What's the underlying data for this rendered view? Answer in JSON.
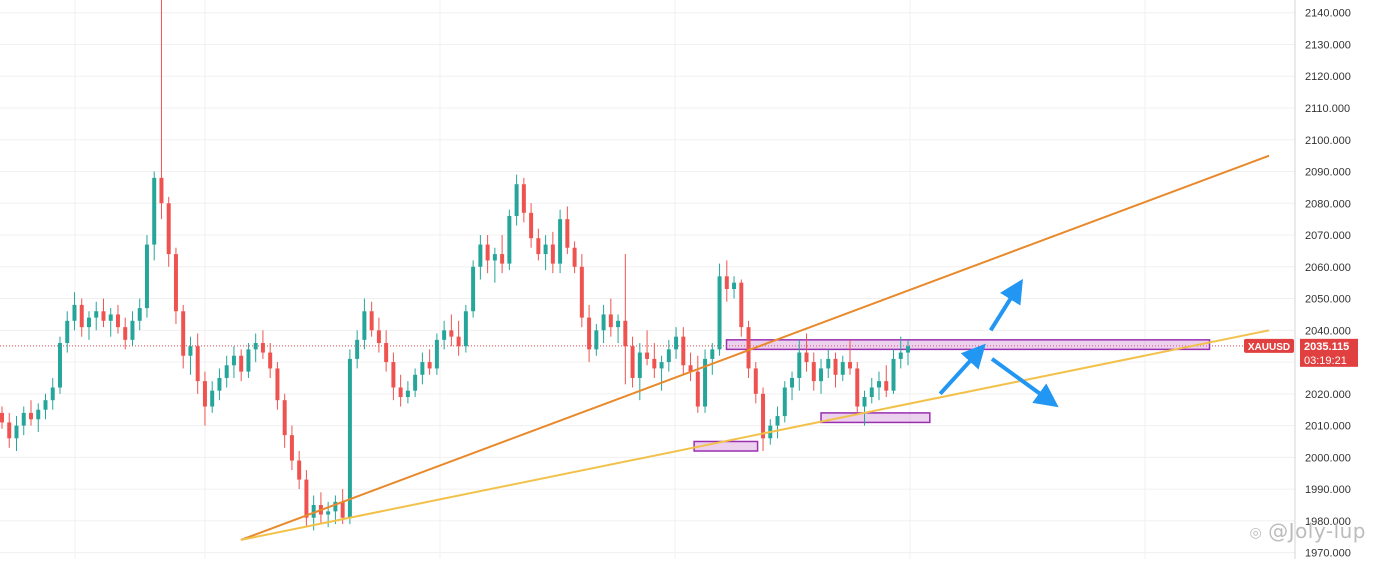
{
  "chart_data": {
    "type": "candlestick",
    "symbol": "XAUUSD",
    "last_price": "2035.115",
    "countdown": "03:19:21",
    "ylim": [
      1968,
      2144
    ],
    "y_ticks": [
      "2140.000",
      "2130.000",
      "2120.000",
      "2110.000",
      "2100.000",
      "2090.000",
      "2080.000",
      "2070.000",
      "2060.000",
      "2050.000",
      "2040.000",
      "2030.000",
      "2020.000",
      "2010.000",
      "2000.000",
      "1990.000",
      "1980.000",
      "1970.000"
    ],
    "grid": true,
    "candles": [
      [
        2014,
        2016,
        2009,
        2011
      ],
      [
        2011,
        2014,
        2003,
        2006
      ],
      [
        2006,
        2013,
        2002,
        2010
      ],
      [
        2010,
        2016,
        2007,
        2014
      ],
      [
        2014,
        2018,
        2010,
        2012
      ],
      [
        2012,
        2017,
        2008,
        2015
      ],
      [
        2015,
        2020,
        2012,
        2018
      ],
      [
        2018,
        2025,
        2015,
        2022
      ],
      [
        2022,
        2038,
        2020,
        2036
      ],
      [
        2036,
        2046,
        2033,
        2043
      ],
      [
        2043,
        2052,
        2040,
        2048
      ],
      [
        2048,
        2050,
        2038,
        2041
      ],
      [
        2041,
        2046,
        2037,
        2044
      ],
      [
        2044,
        2049,
        2040,
        2046
      ],
      [
        2046,
        2050,
        2041,
        2043
      ],
      [
        2043,
        2047,
        2038,
        2045
      ],
      [
        2045,
        2048,
        2039,
        2041
      ],
      [
        2041,
        2044,
        2034,
        2037
      ],
      [
        2037,
        2046,
        2035,
        2043
      ],
      [
        2043,
        2050,
        2040,
        2047
      ],
      [
        2047,
        2070,
        2044,
        2067
      ],
      [
        2067,
        2090,
        2062,
        2088
      ],
      [
        2088,
        2144,
        2075,
        2080
      ],
      [
        2080,
        2082,
        2060,
        2064
      ],
      [
        2064,
        2066,
        2042,
        2046
      ],
      [
        2046,
        2048,
        2028,
        2032
      ],
      [
        2032,
        2038,
        2026,
        2035
      ],
      [
        2035,
        2039,
        2020,
        2024
      ],
      [
        2024,
        2027,
        2010,
        2016
      ],
      [
        2016,
        2024,
        2014,
        2021
      ],
      [
        2021,
        2028,
        2018,
        2025
      ],
      [
        2025,
        2032,
        2022,
        2029
      ],
      [
        2029,
        2035,
        2025,
        2032
      ],
      [
        2032,
        2034,
        2024,
        2027
      ],
      [
        2027,
        2036,
        2025,
        2034
      ],
      [
        2034,
        2039,
        2030,
        2036
      ],
      [
        2036,
        2040,
        2031,
        2033
      ],
      [
        2033,
        2036,
        2025,
        2028
      ],
      [
        2028,
        2030,
        2015,
        2018
      ],
      [
        2018,
        2020,
        2003,
        2007
      ],
      [
        2007,
        2010,
        1996,
        1999
      ],
      [
        1999,
        2002,
        1990,
        1993
      ],
      [
        1993,
        1996,
        1978,
        1981
      ],
      [
        1981,
        1988,
        1977,
        1985
      ],
      [
        1985,
        1989,
        1979,
        1982
      ],
      [
        1982,
        1986,
        1978,
        1983
      ],
      [
        1983,
        1988,
        1979,
        1986
      ],
      [
        1986,
        1990,
        1979,
        1981
      ],
      [
        1981,
        2034,
        1979,
        2031
      ],
      [
        2031,
        2040,
        2028,
        2037
      ],
      [
        2037,
        2050,
        2034,
        2046
      ],
      [
        2046,
        2049,
        2038,
        2040
      ],
      [
        2040,
        2044,
        2033,
        2036
      ],
      [
        2036,
        2040,
        2027,
        2030
      ],
      [
        2030,
        2033,
        2018,
        2022
      ],
      [
        2022,
        2026,
        2016,
        2019
      ],
      [
        2019,
        2024,
        2017,
        2021
      ],
      [
        2021,
        2028,
        2019,
        2026
      ],
      [
        2026,
        2033,
        2023,
        2030
      ],
      [
        2030,
        2034,
        2026,
        2028
      ],
      [
        2028,
        2039,
        2026,
        2037
      ],
      [
        2037,
        2043,
        2034,
        2040
      ],
      [
        2040,
        2045,
        2035,
        2038
      ],
      [
        2038,
        2043,
        2032,
        2035
      ],
      [
        2035,
        2048,
        2033,
        2046
      ],
      [
        2046,
        2062,
        2044,
        2060
      ],
      [
        2060,
        2070,
        2056,
        2067
      ],
      [
        2067,
        2070,
        2058,
        2062
      ],
      [
        2062,
        2066,
        2055,
        2064
      ],
      [
        2064,
        2070,
        2058,
        2061
      ],
      [
        2061,
        2078,
        2059,
        2076
      ],
      [
        2076,
        2089,
        2073,
        2086
      ],
      [
        2086,
        2088,
        2074,
        2077
      ],
      [
        2077,
        2080,
        2066,
        2069
      ],
      [
        2069,
        2072,
        2062,
        2064
      ],
      [
        2064,
        2070,
        2059,
        2067
      ],
      [
        2067,
        2071,
        2058,
        2061
      ],
      [
        2061,
        2078,
        2058,
        2075
      ],
      [
        2075,
        2079,
        2064,
        2066
      ],
      [
        2066,
        2068,
        2058,
        2060
      ],
      [
        2060,
        2064,
        2041,
        2044
      ],
      [
        2044,
        2048,
        2030,
        2034
      ],
      [
        2034,
        2042,
        2032,
        2040
      ],
      [
        2040,
        2048,
        2036,
        2045
      ],
      [
        2045,
        2050,
        2038,
        2041
      ],
      [
        2041,
        2045,
        2036,
        2043
      ],
      [
        2043,
        2064,
        2023,
        2035
      ],
      [
        2035,
        2038,
        2022,
        2025
      ],
      [
        2025,
        2036,
        2018,
        2033
      ],
      [
        2033,
        2040,
        2029,
        2031
      ],
      [
        2031,
        2036,
        2025,
        2028
      ],
      [
        2028,
        2032,
        2021,
        2030
      ],
      [
        2030,
        2037,
        2027,
        2034
      ],
      [
        2034,
        2041,
        2031,
        2038
      ],
      [
        2038,
        2041,
        2026,
        2029
      ],
      [
        2029,
        2033,
        2024,
        2027
      ],
      [
        2027,
        2032,
        2014,
        2016
      ],
      [
        2016,
        2034,
        2014,
        2031
      ],
      [
        2031,
        2036,
        2026,
        2034
      ],
      [
        2034,
        2061,
        2032,
        2057
      ],
      [
        2057,
        2062,
        2049,
        2053
      ],
      [
        2053,
        2057,
        2050,
        2055
      ],
      [
        2055,
        2056,
        2038,
        2041
      ],
      [
        2041,
        2043,
        2025,
        2028
      ],
      [
        2028,
        2030,
        2017,
        2020
      ],
      [
        2020,
        2022,
        2002,
        2006
      ],
      [
        2006,
        2012,
        2004,
        2010
      ],
      [
        2010,
        2016,
        2006,
        2013
      ],
      [
        2013,
        2024,
        2011,
        2022
      ],
      [
        2022,
        2027,
        2018,
        2025
      ],
      [
        2025,
        2037,
        2021,
        2033
      ],
      [
        2033,
        2039,
        2027,
        2030
      ],
      [
        2030,
        2033,
        2021,
        2024
      ],
      [
        2024,
        2031,
        2020,
        2028
      ],
      [
        2028,
        2034,
        2025,
        2031
      ],
      [
        2031,
        2033,
        2022,
        2026
      ],
      [
        2026,
        2032,
        2024,
        2030
      ],
      [
        2030,
        2037,
        2026,
        2028
      ],
      [
        2028,
        2030,
        2014,
        2016
      ],
      [
        2016,
        2021,
        2010,
        2019
      ],
      [
        2019,
        2025,
        2017,
        2022
      ],
      [
        2022,
        2027,
        2018,
        2024
      ],
      [
        2024,
        2029,
        2019,
        2021
      ],
      [
        2021,
        2034,
        2020,
        2031
      ],
      [
        2031,
        2038,
        2028,
        2033
      ],
      [
        2033,
        2037,
        2029,
        2035
      ]
    ],
    "trendlines": [
      {
        "color": "#e8892b",
        "from": [
          0.186,
          1974
        ],
        "to": [
          0.98,
          2095
        ]
      },
      {
        "color": "#f2c14a",
        "from": [
          0.186,
          1974
        ],
        "to": [
          0.98,
          2040
        ]
      }
    ],
    "horizontal_line": {
      "price": 2035.115,
      "color": "#e04040"
    },
    "zones": [
      {
        "x0": 0.561,
        "x1": 0.934,
        "y0": 2034,
        "y1": 2037,
        "color": "#c87ccf"
      },
      {
        "x0": 0.634,
        "x1": 0.718,
        "y0": 2011,
        "y1": 2014,
        "color": "#c87ccf"
      },
      {
        "x0": 0.536,
        "x1": 0.585,
        "y0": 2002,
        "y1": 2005,
        "color": "#c87ccf"
      }
    ],
    "arrows": [
      {
        "from": [
          0.726,
          2020
        ],
        "to": [
          0.755,
          2033
        ]
      },
      {
        "from": [
          0.766,
          2031
        ],
        "to": [
          0.81,
          2018
        ]
      },
      {
        "from": [
          0.765,
          2040
        ],
        "to": [
          0.785,
          2053
        ]
      }
    ]
  },
  "watermark": {
    "icon": "weibo-icon",
    "text": "@Joly-lup"
  },
  "colors": {
    "up": "#26a69a",
    "down": "#ef5350",
    "grid": "#f0f0f0",
    "axis_text": "#333333",
    "label_bg": "#e04040",
    "arrow": "#2196f3"
  }
}
